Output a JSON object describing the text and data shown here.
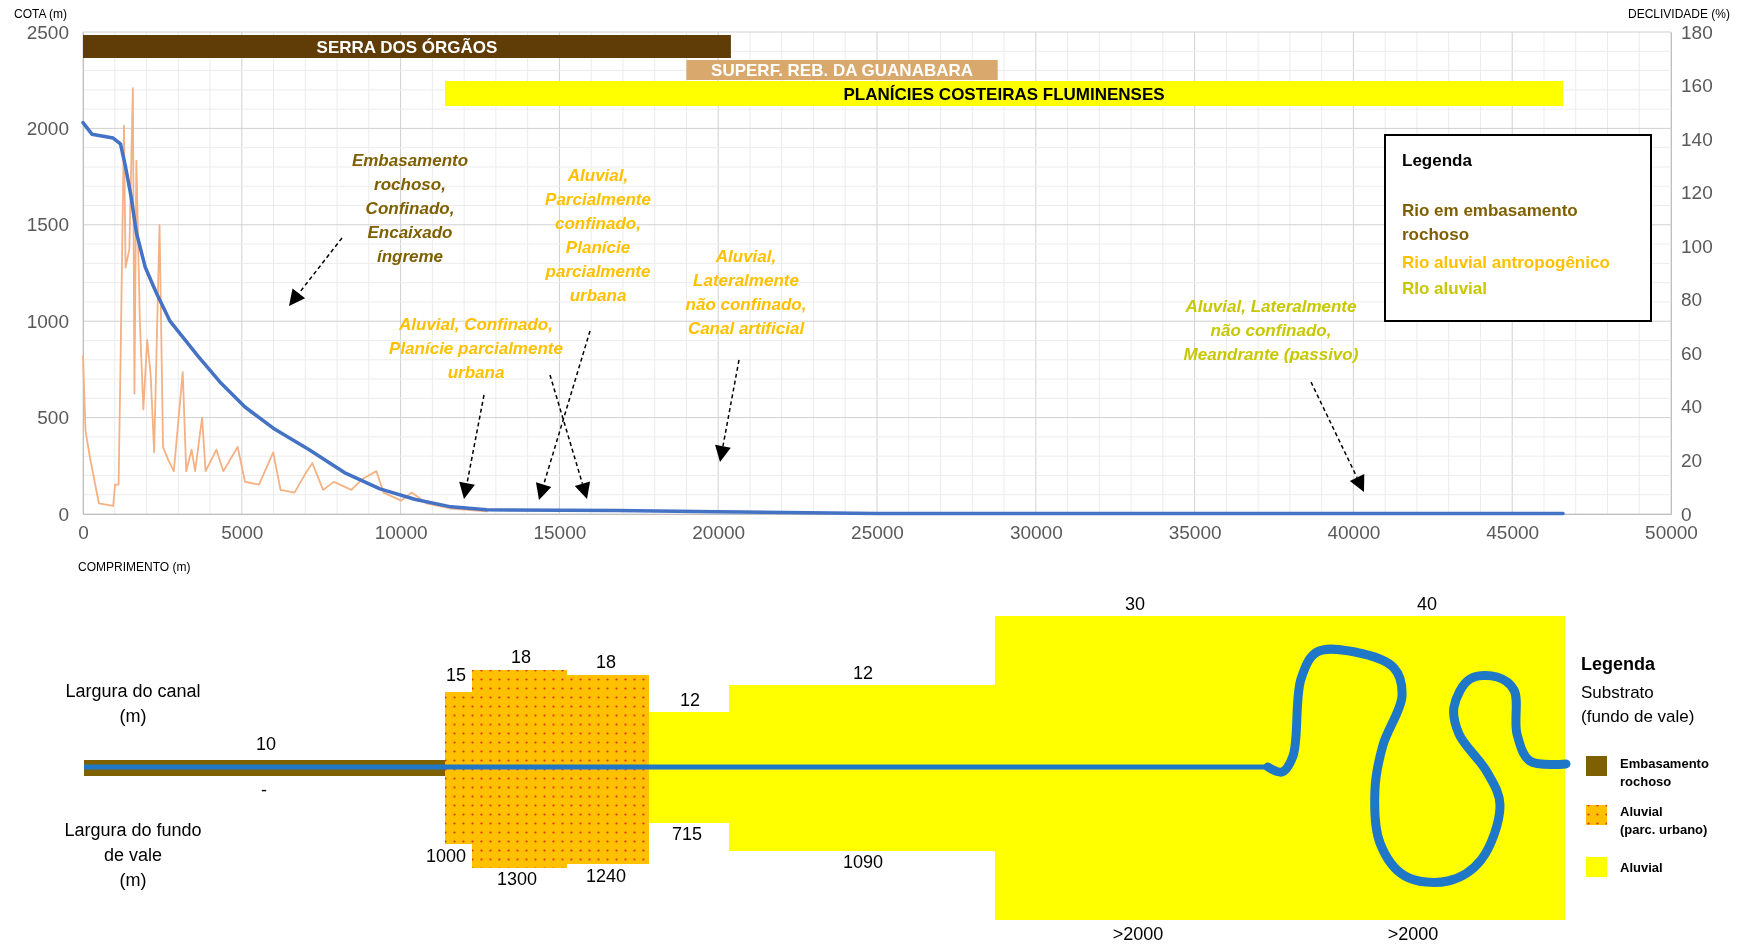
{
  "chart_data": [
    {
      "type": "line",
      "xlabel": "COMPRIMENTO (m)",
      "ylabel": "COTA (m)",
      "y2label": "DECLIVIDADE (%)",
      "xlim": [
        0,
        50000
      ],
      "xticks": [
        0,
        5000,
        10000,
        15000,
        20000,
        25000,
        30000,
        35000,
        40000,
        45000,
        50000
      ],
      "ylim": [
        0,
        2500
      ],
      "yticks": [
        0,
        500,
        1000,
        1500,
        2000,
        2500
      ],
      "y2lim": [
        0,
        180
      ],
      "y2ticks": [
        0,
        20,
        40,
        60,
        80,
        100,
        120,
        140,
        160,
        180
      ],
      "grid": true,
      "series": [
        {
          "color": "#4472c4",
          "x": [
            0,
            280,
            950,
            1180,
            1340,
            1510,
            1680,
            1960,
            2300,
            2740,
            3640,
            4310,
            5100,
            5990,
            7110,
            8230,
            9350,
            10470,
            11590,
            12710,
            16800,
            20000,
            25000,
            30000,
            35000,
            40000,
            46600
          ],
          "values": [
            2030,
            1970,
            1950,
            1920,
            1800,
            1650,
            1460,
            1280,
            1150,
            1000,
            815,
            685,
            555,
            445,
            335,
            215,
            130,
            75,
            37,
            22,
            18,
            12,
            3,
            2,
            2,
            2,
            2
          ]
        },
        {
          "color": "#f4b183",
          "axis": "y2",
          "x": [
            0,
            80,
            220,
            500,
            950,
            1010,
            1120,
            1180,
            1290,
            1340,
            1460,
            1570,
            1620,
            1680,
            1790,
            1900,
            2020,
            2130,
            2240,
            2410,
            2520,
            2690,
            2860,
            3140,
            3250,
            3420,
            3530,
            3750,
            3860,
            4200,
            4420,
            4870,
            5100,
            5540,
            5990,
            6220,
            6660,
            7000,
            7220,
            7560,
            7900,
            8450,
            8790,
            9240,
            9460,
            10020,
            10350,
            10810,
            11590,
            12710
          ],
          "values": [
            59,
            31,
            21,
            4,
            3,
            11,
            11,
            55,
            145,
            92,
            99,
            159,
            45,
            132,
            72,
            39,
            65,
            52,
            23,
            108,
            25,
            20,
            16,
            53,
            16,
            24,
            16,
            36,
            16,
            24,
            16,
            25,
            12,
            11,
            23,
            9,
            8,
            15,
            19,
            9,
            12,
            9,
            13,
            16,
            8,
            5,
            8,
            4,
            2,
            1
          ]
        }
      ],
      "bands": [
        {
          "axis": "x",
          "from": 0,
          "to": 20400,
          "label": "SERRA DOS ÓRGÃOS",
          "color": "#603d07"
        },
        {
          "axis": "x",
          "from": 19000,
          "to": 28800,
          "label": "SUPERF. REB. DA GUANABARA",
          "color": "#d9a86c"
        },
        {
          "axis": "x",
          "from": 11400,
          "to": 46600,
          "label": "PLANÍCIES COSTEIRAS FLUMINENSES",
          "color": "#ffff00"
        }
      ],
      "annotations": [
        "Embasamento rochoso, Confinado, Encaixado íngreme",
        "Aluvial, Confinado, Planície parcialmente urbana",
        "Aluvial, Parcialmente confinado, Planície parcialmente urbana",
        "Aluvial, Lateralmente não confinado, Canal artificial",
        "Aluvial, Lateralmente não confinado, Meandrante (passivo)",
        "Legenda",
        "Rio em embasamento rochoso",
        "Rio aluvial antropogênico",
        "RIo aluvial"
      ]
    },
    {
      "type": "other",
      "annotations": [
        "Largura do canal (m)",
        "Largura do fundo de vale (m)",
        "10",
        "-",
        "15",
        "18",
        "18",
        "12",
        "12",
        "30",
        "40",
        "1000",
        "1300",
        "1240",
        "715",
        "1090",
        ">2000",
        ">2000",
        "Legenda",
        "Substrato (fundo de vale)",
        "Embasamento rochoso",
        "Aluvial (parc. urbano)",
        "Aluvial"
      ]
    }
  ]
}
